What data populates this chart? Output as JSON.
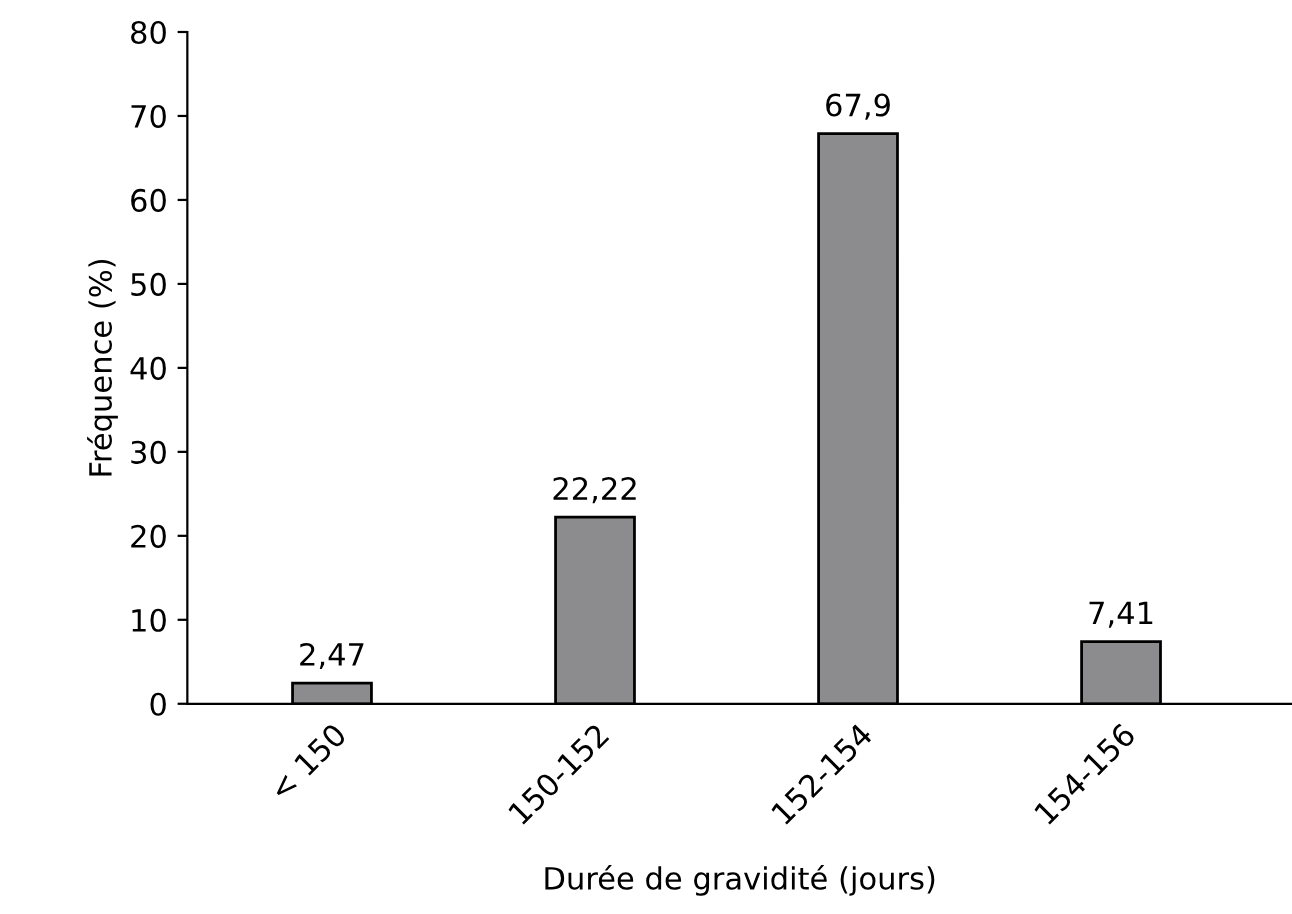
{
  "chart_data": {
    "type": "bar",
    "xlabel": "Durée de gravidité (jours)",
    "ylabel": "Fréquence (%)",
    "categories": [
      "< 150",
      "150-152",
      "152-154",
      "154-156"
    ],
    "values": [
      2.47,
      22.22,
      67.9,
      7.41
    ],
    "value_labels": [
      "2,47",
      "22,22",
      "67,9",
      "7,41"
    ],
    "color": "#8c8c8e",
    "ylim": [
      0,
      80
    ],
    "yticks": [
      0,
      10,
      20,
      30,
      40,
      50,
      60,
      70,
      80
    ],
    "grid": false,
    "legend": false
  }
}
